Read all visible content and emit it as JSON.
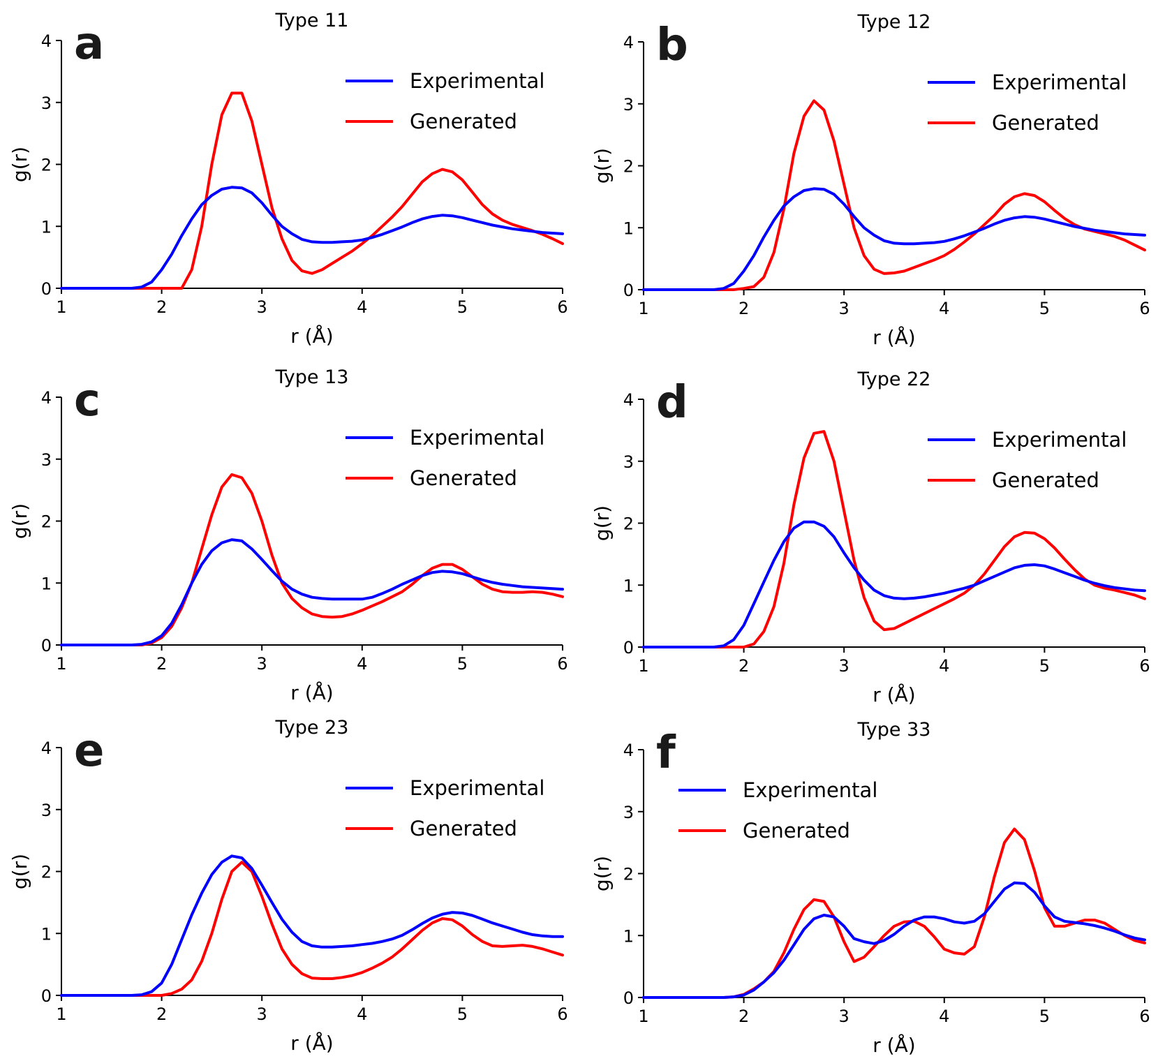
{
  "colors": {
    "experimental": "#0000ff",
    "generated": "#ff0000"
  },
  "chart_data": [
    {
      "type": "line",
      "panel": "a",
      "title": "Type 11",
      "xlabel": "r (Å)",
      "ylabel": "g(r)",
      "xlim": [
        1,
        6
      ],
      "ylim": [
        0,
        4
      ],
      "xticks": [
        1,
        2,
        3,
        4,
        5,
        6
      ],
      "yticks": [
        0,
        1,
        2,
        3,
        4
      ],
      "legend": "top-right",
      "grid": false,
      "x": [
        1.0,
        1.5,
        1.7,
        1.8,
        1.9,
        2.0,
        2.1,
        2.2,
        2.3,
        2.4,
        2.5,
        2.6,
        2.7,
        2.8,
        2.9,
        3.0,
        3.1,
        3.2,
        3.3,
        3.4,
        3.5,
        3.6,
        3.7,
        3.8,
        3.9,
        4.0,
        4.1,
        4.2,
        4.3,
        4.4,
        4.5,
        4.6,
        4.7,
        4.8,
        4.9,
        5.0,
        5.1,
        5.2,
        5.3,
        5.4,
        5.5,
        5.6,
        5.7,
        5.8,
        5.9,
        6.0
      ],
      "series": [
        {
          "name": "Experimental",
          "color": "#0000ff",
          "values": [
            0,
            0,
            0,
            0.02,
            0.1,
            0.3,
            0.55,
            0.85,
            1.12,
            1.35,
            1.5,
            1.6,
            1.63,
            1.62,
            1.54,
            1.38,
            1.18,
            1.0,
            0.88,
            0.79,
            0.75,
            0.74,
            0.74,
            0.75,
            0.76,
            0.78,
            0.82,
            0.87,
            0.93,
            0.99,
            1.06,
            1.12,
            1.16,
            1.18,
            1.17,
            1.14,
            1.1,
            1.06,
            1.02,
            0.99,
            0.96,
            0.94,
            0.92,
            0.9,
            0.89,
            0.88
          ]
        },
        {
          "name": "Generated",
          "color": "#ff0000",
          "values": [
            0,
            0,
            0,
            0,
            0,
            0,
            0,
            0,
            0.3,
            1.0,
            2.0,
            2.8,
            3.15,
            3.15,
            2.7,
            2.0,
            1.3,
            0.8,
            0.45,
            0.28,
            0.24,
            0.3,
            0.4,
            0.5,
            0.6,
            0.72,
            0.85,
            1.0,
            1.15,
            1.32,
            1.52,
            1.72,
            1.85,
            1.92,
            1.88,
            1.75,
            1.55,
            1.35,
            1.2,
            1.1,
            1.03,
            0.98,
            0.93,
            0.87,
            0.8,
            0.72
          ]
        }
      ]
    },
    {
      "type": "line",
      "panel": "b",
      "title": "Type 12",
      "xlabel": "r (Å)",
      "ylabel": "g(r)",
      "xlim": [
        1,
        6
      ],
      "ylim": [
        0,
        4
      ],
      "xticks": [
        1,
        2,
        3,
        4,
        5,
        6
      ],
      "yticks": [
        0,
        1,
        2,
        3,
        4
      ],
      "legend": "top-right",
      "grid": false,
      "x": [
        1.0,
        1.5,
        1.7,
        1.8,
        1.9,
        2.0,
        2.1,
        2.2,
        2.3,
        2.4,
        2.5,
        2.6,
        2.7,
        2.8,
        2.9,
        3.0,
        3.1,
        3.2,
        3.3,
        3.4,
        3.5,
        3.6,
        3.7,
        3.8,
        3.9,
        4.0,
        4.1,
        4.2,
        4.3,
        4.4,
        4.5,
        4.6,
        4.7,
        4.8,
        4.9,
        5.0,
        5.1,
        5.2,
        5.3,
        5.4,
        5.5,
        5.6,
        5.7,
        5.8,
        5.9,
        6.0
      ],
      "series": [
        {
          "name": "Experimental",
          "color": "#0000ff",
          "values": [
            0,
            0,
            0,
            0.02,
            0.1,
            0.3,
            0.55,
            0.85,
            1.12,
            1.35,
            1.5,
            1.6,
            1.63,
            1.62,
            1.54,
            1.38,
            1.18,
            1.0,
            0.88,
            0.79,
            0.75,
            0.74,
            0.74,
            0.75,
            0.76,
            0.78,
            0.82,
            0.87,
            0.93,
            0.99,
            1.06,
            1.12,
            1.16,
            1.18,
            1.17,
            1.14,
            1.1,
            1.06,
            1.02,
            0.99,
            0.96,
            0.94,
            0.92,
            0.9,
            0.89,
            0.88
          ]
        },
        {
          "name": "Generated",
          "color": "#ff0000",
          "values": [
            0,
            0,
            0,
            0,
            0,
            0.02,
            0.05,
            0.2,
            0.6,
            1.3,
            2.2,
            2.8,
            3.05,
            2.9,
            2.4,
            1.7,
            1.0,
            0.55,
            0.33,
            0.26,
            0.27,
            0.3,
            0.36,
            0.42,
            0.48,
            0.55,
            0.65,
            0.77,
            0.9,
            1.05,
            1.2,
            1.38,
            1.5,
            1.55,
            1.52,
            1.42,
            1.28,
            1.15,
            1.05,
            0.98,
            0.94,
            0.9,
            0.86,
            0.8,
            0.72,
            0.64
          ]
        }
      ]
    },
    {
      "type": "line",
      "panel": "c",
      "title": "Type 13",
      "xlabel": "r (Å)",
      "ylabel": "g(r)",
      "xlim": [
        1,
        6
      ],
      "ylim": [
        0,
        4
      ],
      "xticks": [
        1,
        2,
        3,
        4,
        5,
        6
      ],
      "yticks": [
        0,
        1,
        2,
        3,
        4
      ],
      "legend": "top-right",
      "grid": false,
      "x": [
        1.0,
        1.5,
        1.7,
        1.8,
        1.9,
        2.0,
        2.1,
        2.2,
        2.3,
        2.4,
        2.5,
        2.6,
        2.7,
        2.8,
        2.9,
        3.0,
        3.1,
        3.2,
        3.3,
        3.4,
        3.5,
        3.6,
        3.7,
        3.8,
        3.9,
        4.0,
        4.1,
        4.2,
        4.3,
        4.4,
        4.5,
        4.6,
        4.7,
        4.8,
        4.9,
        5.0,
        5.1,
        5.2,
        5.3,
        5.4,
        5.5,
        5.6,
        5.7,
        5.8,
        5.9,
        6.0
      ],
      "series": [
        {
          "name": "Experimental",
          "color": "#0000ff",
          "values": [
            0,
            0,
            0,
            0.01,
            0.05,
            0.15,
            0.35,
            0.65,
            1.0,
            1.3,
            1.52,
            1.65,
            1.7,
            1.68,
            1.55,
            1.38,
            1.2,
            1.03,
            0.9,
            0.82,
            0.77,
            0.75,
            0.74,
            0.74,
            0.74,
            0.74,
            0.77,
            0.83,
            0.9,
            0.98,
            1.05,
            1.12,
            1.17,
            1.19,
            1.18,
            1.15,
            1.1,
            1.05,
            1.01,
            0.98,
            0.96,
            0.94,
            0.93,
            0.92,
            0.91,
            0.9
          ]
        },
        {
          "name": "Generated",
          "color": "#ff0000",
          "values": [
            0,
            0,
            0,
            0,
            0.03,
            0.12,
            0.3,
            0.6,
            1.0,
            1.55,
            2.1,
            2.55,
            2.75,
            2.7,
            2.45,
            2.0,
            1.45,
            1.0,
            0.75,
            0.6,
            0.5,
            0.46,
            0.45,
            0.46,
            0.5,
            0.56,
            0.63,
            0.7,
            0.78,
            0.86,
            0.98,
            1.12,
            1.24,
            1.3,
            1.3,
            1.22,
            1.1,
            0.98,
            0.9,
            0.86,
            0.85,
            0.85,
            0.86,
            0.85,
            0.82,
            0.78
          ]
        }
      ]
    },
    {
      "type": "line",
      "panel": "d",
      "title": "Type 22",
      "xlabel": "r (Å)",
      "ylabel": "g(r)",
      "xlim": [
        1,
        6
      ],
      "ylim": [
        0,
        4
      ],
      "xticks": [
        1,
        2,
        3,
        4,
        5,
        6
      ],
      "yticks": [
        0,
        1,
        2,
        3,
        4
      ],
      "legend": "top-right",
      "grid": false,
      "x": [
        1.0,
        1.5,
        1.7,
        1.8,
        1.9,
        2.0,
        2.1,
        2.2,
        2.3,
        2.4,
        2.5,
        2.6,
        2.7,
        2.8,
        2.9,
        3.0,
        3.1,
        3.2,
        3.3,
        3.4,
        3.5,
        3.6,
        3.7,
        3.8,
        3.9,
        4.0,
        4.1,
        4.2,
        4.3,
        4.4,
        4.5,
        4.6,
        4.7,
        4.8,
        4.9,
        5.0,
        5.1,
        5.2,
        5.3,
        5.4,
        5.5,
        5.6,
        5.7,
        5.8,
        5.9,
        6.0
      ],
      "series": [
        {
          "name": "Experimental",
          "color": "#0000ff",
          "values": [
            0,
            0,
            0,
            0.02,
            0.12,
            0.35,
            0.7,
            1.05,
            1.4,
            1.7,
            1.92,
            2.02,
            2.02,
            1.95,
            1.78,
            1.52,
            1.28,
            1.08,
            0.92,
            0.83,
            0.79,
            0.78,
            0.79,
            0.81,
            0.84,
            0.87,
            0.91,
            0.95,
            1.0,
            1.07,
            1.14,
            1.21,
            1.28,
            1.32,
            1.33,
            1.31,
            1.26,
            1.2,
            1.14,
            1.08,
            1.03,
            0.99,
            0.96,
            0.94,
            0.92,
            0.91
          ]
        },
        {
          "name": "Generated",
          "color": "#ff0000",
          "values": [
            0,
            0,
            0,
            0,
            0,
            0,
            0.05,
            0.25,
            0.65,
            1.35,
            2.3,
            3.05,
            3.45,
            3.48,
            3.0,
            2.2,
            1.4,
            0.8,
            0.42,
            0.28,
            0.3,
            0.38,
            0.46,
            0.54,
            0.62,
            0.7,
            0.78,
            0.87,
            1.0,
            1.18,
            1.4,
            1.62,
            1.78,
            1.85,
            1.84,
            1.75,
            1.6,
            1.42,
            1.25,
            1.1,
            1.0,
            0.95,
            0.92,
            0.88,
            0.84,
            0.78
          ]
        }
      ]
    },
    {
      "type": "line",
      "panel": "e",
      "title": "Type 23",
      "xlabel": "r (Å)",
      "ylabel": "g(r)",
      "xlim": [
        1,
        6
      ],
      "ylim": [
        0,
        4
      ],
      "xticks": [
        1,
        2,
        3,
        4,
        5,
        6
      ],
      "yticks": [
        0,
        1,
        2,
        3,
        4
      ],
      "legend": "top-right",
      "grid": false,
      "x": [
        1.0,
        1.5,
        1.7,
        1.8,
        1.9,
        2.0,
        2.1,
        2.2,
        2.3,
        2.4,
        2.5,
        2.6,
        2.7,
        2.8,
        2.9,
        3.0,
        3.1,
        3.2,
        3.3,
        3.4,
        3.5,
        3.6,
        3.7,
        3.8,
        3.9,
        4.0,
        4.1,
        4.2,
        4.3,
        4.4,
        4.5,
        4.6,
        4.7,
        4.8,
        4.9,
        5.0,
        5.1,
        5.2,
        5.3,
        5.4,
        5.5,
        5.6,
        5.7,
        5.8,
        5.9,
        6.0
      ],
      "series": [
        {
          "name": "Experimental",
          "color": "#0000ff",
          "values": [
            0,
            0,
            0,
            0.01,
            0.06,
            0.2,
            0.5,
            0.9,
            1.3,
            1.65,
            1.95,
            2.15,
            2.25,
            2.22,
            2.05,
            1.78,
            1.5,
            1.23,
            1.02,
            0.87,
            0.8,
            0.78,
            0.78,
            0.79,
            0.8,
            0.82,
            0.84,
            0.87,
            0.91,
            0.97,
            1.06,
            1.16,
            1.25,
            1.31,
            1.34,
            1.33,
            1.29,
            1.23,
            1.17,
            1.12,
            1.07,
            1.02,
            0.98,
            0.96,
            0.95,
            0.95
          ]
        },
        {
          "name": "Generated",
          "color": "#ff0000",
          "values": [
            0,
            0,
            0,
            0,
            0,
            0,
            0.03,
            0.1,
            0.25,
            0.55,
            1.0,
            1.55,
            2.0,
            2.15,
            2.0,
            1.6,
            1.15,
            0.75,
            0.5,
            0.35,
            0.28,
            0.27,
            0.27,
            0.29,
            0.32,
            0.37,
            0.44,
            0.52,
            0.62,
            0.75,
            0.9,
            1.05,
            1.17,
            1.24,
            1.22,
            1.12,
            0.98,
            0.87,
            0.8,
            0.79,
            0.8,
            0.81,
            0.79,
            0.75,
            0.7,
            0.65
          ]
        }
      ]
    },
    {
      "type": "line",
      "panel": "f",
      "title": "Type 33",
      "xlabel": "r (Å)",
      "ylabel": "g(r)",
      "xlim": [
        1,
        6
      ],
      "ylim": [
        0,
        4
      ],
      "xticks": [
        1,
        2,
        3,
        4,
        5,
        6
      ],
      "yticks": [
        0,
        1,
        2,
        3,
        4
      ],
      "legend": "top-left",
      "grid": false,
      "x": [
        1.0,
        1.5,
        1.7,
        1.8,
        1.9,
        2.0,
        2.1,
        2.2,
        2.3,
        2.4,
        2.5,
        2.6,
        2.7,
        2.8,
        2.9,
        3.0,
        3.1,
        3.2,
        3.3,
        3.4,
        3.5,
        3.6,
        3.7,
        3.8,
        3.9,
        4.0,
        4.1,
        4.2,
        4.3,
        4.4,
        4.5,
        4.6,
        4.7,
        4.8,
        4.9,
        5.0,
        5.1,
        5.2,
        5.3,
        5.4,
        5.5,
        5.6,
        5.7,
        5.8,
        5.9,
        6.0
      ],
      "series": [
        {
          "name": "Experimental",
          "color": "#0000ff",
          "values": [
            0,
            0,
            0,
            0,
            0.01,
            0.04,
            0.12,
            0.25,
            0.4,
            0.6,
            0.85,
            1.1,
            1.27,
            1.33,
            1.3,
            1.15,
            0.95,
            0.9,
            0.87,
            0.92,
            1.02,
            1.15,
            1.25,
            1.3,
            1.3,
            1.27,
            1.22,
            1.2,
            1.23,
            1.35,
            1.55,
            1.75,
            1.85,
            1.84,
            1.7,
            1.48,
            1.3,
            1.23,
            1.21,
            1.19,
            1.16,
            1.12,
            1.07,
            1.01,
            0.96,
            0.93
          ]
        },
        {
          "name": "Generated",
          "color": "#ff0000",
          "values": [
            0,
            0,
            0,
            0,
            0.01,
            0.05,
            0.14,
            0.25,
            0.42,
            0.72,
            1.1,
            1.42,
            1.58,
            1.55,
            1.3,
            0.9,
            0.58,
            0.65,
            0.82,
            1.0,
            1.15,
            1.22,
            1.23,
            1.15,
            0.98,
            0.78,
            0.72,
            0.7,
            0.82,
            1.3,
            1.95,
            2.5,
            2.72,
            2.55,
            2.05,
            1.45,
            1.15,
            1.15,
            1.2,
            1.25,
            1.25,
            1.2,
            1.1,
            1.0,
            0.92,
            0.88
          ]
        }
      ]
    }
  ]
}
